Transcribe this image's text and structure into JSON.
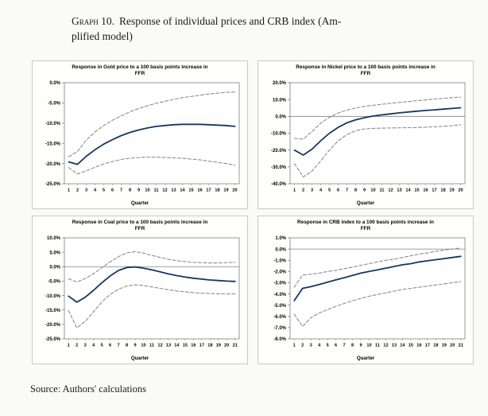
{
  "caption": {
    "graph_label": "Graph 10.",
    "line1_rest": "Response of individual prices and CRB index (Am-",
    "line2": "plified model)"
  },
  "source": "Source: Authors' calculations",
  "colors": {
    "line": "#17375e",
    "band": "#8c8c8c",
    "axis": "#7f7f7f"
  },
  "chart_data": [
    {
      "type": "line",
      "title_lines": [
        "Response in Gold price to a 100 basis points increase in",
        "FFR"
      ],
      "xlabel": "Quarter",
      "x": [
        1,
        2,
        3,
        4,
        5,
        6,
        7,
        8,
        9,
        10,
        11,
        12,
        13,
        14,
        15,
        16,
        17,
        18,
        19,
        20
      ],
      "ylim": [
        -25,
        0
      ],
      "ytick_values": [
        0,
        -5,
        -10,
        -15,
        -20,
        -25
      ],
      "ytick_labels": [
        "0.0%",
        "-5.0%",
        "-10.0%",
        "-15.0%",
        "-20.0%",
        "-25.0%"
      ],
      "legend": "off",
      "series": [
        {
          "name": "response",
          "style": "solid",
          "values": [
            -19.6,
            -20.2,
            -18.2,
            -16.6,
            -15.2,
            -14.1,
            -13.1,
            -12.3,
            -11.7,
            -11.2,
            -10.8,
            -10.6,
            -10.4,
            -10.3,
            -10.3,
            -10.3,
            -10.4,
            -10.5,
            -10.6,
            -10.8
          ]
        },
        {
          "name": "upper-band",
          "style": "dashed",
          "values": [
            -18.3,
            -17.0,
            -14.2,
            -12.2,
            -10.6,
            -9.3,
            -8.2,
            -7.2,
            -6.4,
            -5.7,
            -5.1,
            -4.6,
            -4.1,
            -3.7,
            -3.4,
            -3.1,
            -2.8,
            -2.6,
            -2.4,
            -2.3
          ]
        },
        {
          "name": "lower-band",
          "style": "dashed",
          "values": [
            -21.0,
            -22.6,
            -21.8,
            -20.9,
            -20.1,
            -19.5,
            -19.0,
            -18.7,
            -18.5,
            -18.4,
            -18.4,
            -18.5,
            -18.6,
            -18.7,
            -18.9,
            -19.1,
            -19.4,
            -19.7,
            -20.0,
            -20.4
          ]
        }
      ]
    },
    {
      "type": "line",
      "title_lines": [
        "Response in Nickel price to a 100 basis points increase in",
        "FFR"
      ],
      "xlabel": "Quarter",
      "x": [
        1,
        2,
        3,
        4,
        5,
        6,
        7,
        8,
        9,
        10,
        11,
        12,
        13,
        14,
        15,
        16,
        17,
        18,
        19,
        20
      ],
      "ylim": [
        -40,
        20
      ],
      "ytick_values": [
        20,
        10,
        0,
        -10,
        -20,
        -30,
        -40
      ],
      "ytick_labels": [
        "20.0%",
        "10.0%",
        "0.0%",
        "-10.0%",
        "-20.0%",
        "-30.0%",
        "-40.0%"
      ],
      "legend": "off",
      "series": [
        {
          "name": "response",
          "style": "solid",
          "values": [
            -20.0,
            -23.0,
            -19.5,
            -14.5,
            -10.0,
            -6.5,
            -3.8,
            -2.0,
            -0.8,
            0.2,
            0.9,
            1.5,
            2.1,
            2.6,
            3.1,
            3.5,
            3.9,
            4.3,
            4.7,
            5.1
          ]
        },
        {
          "name": "upper-band",
          "style": "dashed",
          "values": [
            -13.0,
            -13.5,
            -9.0,
            -4.0,
            -0.5,
            2.0,
            3.8,
            5.0,
            5.9,
            6.6,
            7.2,
            7.8,
            8.3,
            8.8,
            9.3,
            9.8,
            10.3,
            10.7,
            11.1,
            11.5
          ]
        },
        {
          "name": "lower-band",
          "style": "dashed",
          "values": [
            -28.0,
            -36.0,
            -32.5,
            -26.5,
            -20.0,
            -14.5,
            -10.8,
            -8.5,
            -7.5,
            -7.1,
            -7.0,
            -6.9,
            -6.8,
            -6.7,
            -6.6,
            -6.4,
            -6.2,
            -5.9,
            -5.5,
            -5.0
          ]
        }
      ]
    },
    {
      "type": "line",
      "title_lines": [
        "Response in Coal price to a 100 basis points increase in",
        "FFR"
      ],
      "xlabel": "Quarter",
      "x": [
        1,
        2,
        3,
        4,
        5,
        6,
        7,
        8,
        9,
        10,
        11,
        12,
        13,
        14,
        15,
        16,
        17,
        18,
        19,
        20,
        21
      ],
      "ylim": [
        -25,
        10
      ],
      "ytick_values": [
        10,
        5,
        0,
        -5,
        -10,
        -15,
        -20,
        -25
      ],
      "ytick_labels": [
        "10.0%",
        "5.0%",
        "0.0%",
        "-5.0%",
        "-10.0%",
        "-15.0%",
        "-20.0%",
        "-25.0%"
      ],
      "legend": "off",
      "series": [
        {
          "name": "response",
          "style": "solid",
          "values": [
            -10.2,
            -12.3,
            -10.6,
            -8.2,
            -5.6,
            -3.2,
            -1.3,
            -0.3,
            -0.1,
            -0.5,
            -1.1,
            -1.8,
            -2.5,
            -3.1,
            -3.6,
            -4.0,
            -4.3,
            -4.6,
            -4.8,
            -5.0,
            -5.1
          ]
        },
        {
          "name": "upper-band",
          "style": "dashed",
          "values": [
            -4.2,
            -5.3,
            -4.1,
            -2.4,
            -0.4,
            1.7,
            3.5,
            4.8,
            5.2,
            4.7,
            3.9,
            3.2,
            2.6,
            2.1,
            1.8,
            1.5,
            1.4,
            1.3,
            1.3,
            1.4,
            1.5
          ]
        },
        {
          "name": "lower-band",
          "style": "dashed",
          "values": [
            -15.2,
            -21.2,
            -19.0,
            -15.6,
            -12.2,
            -9.6,
            -7.8,
            -6.7,
            -6.3,
            -6.5,
            -7.0,
            -7.5,
            -8.0,
            -8.4,
            -8.7,
            -9.0,
            -9.2,
            -9.3,
            -9.4,
            -9.4,
            -9.4
          ]
        }
      ]
    },
    {
      "type": "line",
      "title_lines": [
        "Response in CRB index to a 100 basis points increase in",
        "FFR"
      ],
      "xlabel": "Quarter",
      "x": [
        1,
        2,
        3,
        4,
        5,
        6,
        7,
        8,
        9,
        10,
        11,
        12,
        13,
        14,
        15,
        16,
        17,
        18,
        19,
        20,
        21
      ],
      "ylim": [
        -8,
        1
      ],
      "ytick_values": [
        1,
        0,
        -1,
        -2,
        -3,
        -4,
        -5,
        -6,
        -7,
        -8
      ],
      "ytick_labels": [
        "1.0%",
        "0.0%",
        "-1.0%",
        "-2.0%",
        "-3.0%",
        "-4.0%",
        "-5.0%",
        "-6.0%",
        "-7.0%",
        "-8.0%"
      ],
      "legend": "off",
      "series": [
        {
          "name": "response",
          "style": "solid",
          "values": [
            -4.6,
            -3.5,
            -3.35,
            -3.15,
            -2.95,
            -2.75,
            -2.55,
            -2.35,
            -2.15,
            -2.0,
            -1.85,
            -1.7,
            -1.55,
            -1.4,
            -1.3,
            -1.15,
            -1.05,
            -0.95,
            -0.85,
            -0.75,
            -0.65
          ]
        },
        {
          "name": "upper-band",
          "style": "dashed",
          "values": [
            -3.4,
            -2.3,
            -2.25,
            -2.15,
            -2.0,
            -1.9,
            -1.75,
            -1.6,
            -1.45,
            -1.3,
            -1.15,
            -1.0,
            -0.9,
            -0.75,
            -0.6,
            -0.45,
            -0.35,
            -0.2,
            -0.1,
            0.0,
            0.1
          ]
        },
        {
          "name": "lower-band",
          "style": "dashed",
          "values": [
            -5.8,
            -6.9,
            -6.1,
            -5.7,
            -5.4,
            -5.1,
            -4.85,
            -4.6,
            -4.4,
            -4.2,
            -4.05,
            -3.9,
            -3.75,
            -3.6,
            -3.5,
            -3.4,
            -3.3,
            -3.2,
            -3.1,
            -3.0,
            -2.9
          ]
        }
      ]
    }
  ]
}
